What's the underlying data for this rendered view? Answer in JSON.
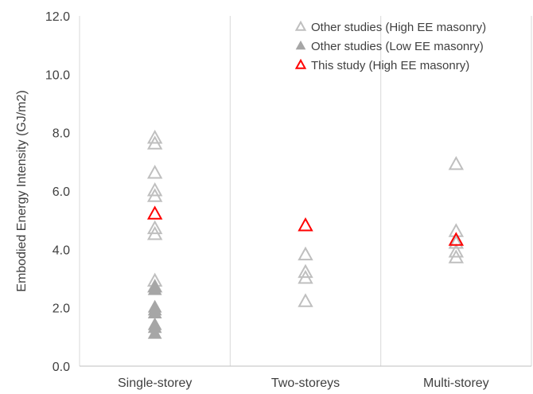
{
  "chart_data": {
    "type": "scatter",
    "title": "",
    "xlabel": "",
    "ylabel": "Embodied Energy Intensity (GJ/m2)",
    "categories": [
      "Single-storey",
      "Two-storeys",
      "Multi-storey"
    ],
    "ylim": [
      0,
      12
    ],
    "yticks": [
      "0.0",
      "2.0",
      "4.0",
      "6.0",
      "8.0",
      "10.0",
      "12.0"
    ],
    "grid": "vertical",
    "legend_position": "top-right",
    "series": [
      {
        "name": "Other studies (High EE masonry)",
        "marker": "hollow-triangle",
        "color": "#bfbfbf",
        "points": [
          {
            "category": "Single-storey",
            "y": 7.8
          },
          {
            "category": "Single-storey",
            "y": 7.6
          },
          {
            "category": "Single-storey",
            "y": 6.6
          },
          {
            "category": "Single-storey",
            "y": 6.0
          },
          {
            "category": "Single-storey",
            "y": 5.8
          },
          {
            "category": "Single-storey",
            "y": 4.7
          },
          {
            "category": "Single-storey",
            "y": 4.5
          },
          {
            "category": "Single-storey",
            "y": 2.9
          },
          {
            "category": "Single-storey",
            "y": 2.7
          },
          {
            "category": "Two-storeys",
            "y": 3.8
          },
          {
            "category": "Two-storeys",
            "y": 3.2
          },
          {
            "category": "Two-storeys",
            "y": 3.0
          },
          {
            "category": "Two-storeys",
            "y": 2.2
          },
          {
            "category": "Multi-storey",
            "y": 6.9
          },
          {
            "category": "Multi-storey",
            "y": 4.6
          },
          {
            "category": "Multi-storey",
            "y": 4.2
          },
          {
            "category": "Multi-storey",
            "y": 3.9
          },
          {
            "category": "Multi-storey",
            "y": 3.7
          }
        ]
      },
      {
        "name": "Other studies (Low EE masonry)",
        "marker": "filled-triangle",
        "color": "#a6a6a6",
        "points": [
          {
            "category": "Single-storey",
            "y": 2.7
          },
          {
            "category": "Single-storey",
            "y": 2.6
          },
          {
            "category": "Single-storey",
            "y": 2.0
          },
          {
            "category": "Single-storey",
            "y": 1.9
          },
          {
            "category": "Single-storey",
            "y": 1.8
          },
          {
            "category": "Single-storey",
            "y": 1.4
          },
          {
            "category": "Single-storey",
            "y": 1.3
          },
          {
            "category": "Single-storey",
            "y": 1.1
          }
        ]
      },
      {
        "name": "This study (High EE masonry)",
        "marker": "hollow-triangle",
        "color": "#ff0000",
        "points": [
          {
            "category": "Single-storey",
            "y": 5.2
          },
          {
            "category": "Two-storeys",
            "y": 4.8
          },
          {
            "category": "Multi-storey",
            "y": 4.3
          }
        ]
      }
    ]
  }
}
